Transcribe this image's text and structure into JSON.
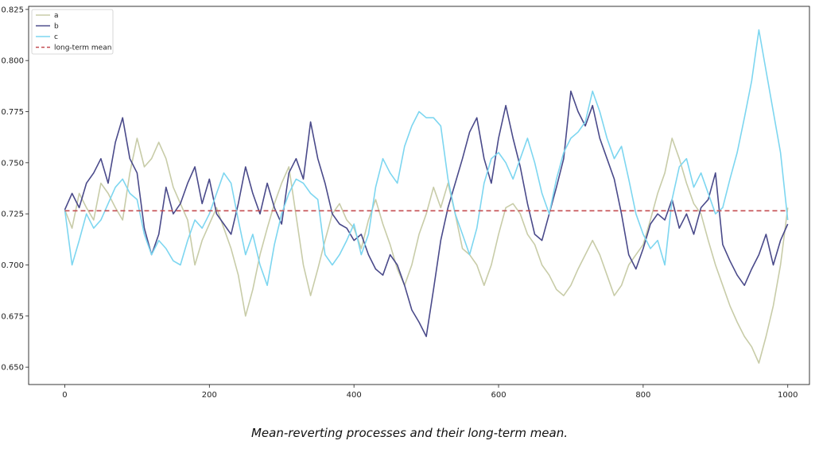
{
  "caption": "Mean-reverting processes and their long-term mean.",
  "chart_data": {
    "type": "line",
    "xlim": [
      -50,
      1030
    ],
    "ylim": [
      0.6415,
      0.8265
    ],
    "x_ticks": [
      0,
      200,
      400,
      600,
      800,
      1000
    ],
    "y_ticks": [
      0.65,
      0.675,
      0.7,
      0.725,
      0.75,
      0.775,
      0.8,
      0.825
    ],
    "grid": false,
    "legend_position": "top-left",
    "long_term_mean": 0.7265,
    "series": [
      {
        "name": "a",
        "color": "#c8cca8",
        "x": [
          0,
          10,
          20,
          30,
          40,
          50,
          60,
          70,
          80,
          90,
          100,
          110,
          120,
          130,
          140,
          150,
          160,
          170,
          180,
          190,
          200,
          210,
          220,
          230,
          240,
          250,
          260,
          270,
          280,
          290,
          300,
          310,
          320,
          330,
          340,
          350,
          360,
          370,
          380,
          390,
          400,
          410,
          420,
          430,
          440,
          450,
          460,
          470,
          480,
          490,
          500,
          510,
          520,
          530,
          540,
          550,
          560,
          570,
          580,
          590,
          600,
          610,
          620,
          630,
          640,
          650,
          660,
          670,
          680,
          690,
          700,
          710,
          720,
          730,
          740,
          750,
          760,
          770,
          780,
          790,
          800,
          810,
          820,
          830,
          840,
          850,
          860,
          870,
          880,
          890,
          900,
          910,
          920,
          930,
          940,
          950,
          960,
          970,
          980,
          990,
          1000
        ],
        "values": [
          0.727,
          0.718,
          0.735,
          0.728,
          0.722,
          0.74,
          0.735,
          0.728,
          0.722,
          0.745,
          0.762,
          0.748,
          0.752,
          0.76,
          0.752,
          0.738,
          0.73,
          0.722,
          0.7,
          0.712,
          0.72,
          0.728,
          0.718,
          0.708,
          0.695,
          0.675,
          0.688,
          0.705,
          0.718,
          0.73,
          0.74,
          0.748,
          0.724,
          0.7,
          0.685,
          0.698,
          0.712,
          0.725,
          0.73,
          0.722,
          0.718,
          0.708,
          0.722,
          0.732,
          0.72,
          0.71,
          0.698,
          0.69,
          0.7,
          0.715,
          0.725,
          0.738,
          0.728,
          0.74,
          0.725,
          0.708,
          0.705,
          0.7,
          0.69,
          0.7,
          0.715,
          0.728,
          0.73,
          0.725,
          0.715,
          0.71,
          0.7,
          0.695,
          0.688,
          0.685,
          0.69,
          0.698,
          0.705,
          0.712,
          0.705,
          0.695,
          0.685,
          0.69,
          0.7,
          0.705,
          0.71,
          0.722,
          0.735,
          0.745,
          0.762,
          0.752,
          0.74,
          0.73,
          0.725,
          0.712,
          0.7,
          0.69,
          0.68,
          0.672,
          0.665,
          0.66,
          0.652,
          0.665,
          0.68,
          0.7,
          0.728
        ]
      },
      {
        "name": "b",
        "color": "#4a4a8a",
        "x": [
          0,
          10,
          20,
          30,
          40,
          50,
          60,
          70,
          80,
          90,
          100,
          110,
          120,
          130,
          140,
          150,
          160,
          170,
          180,
          190,
          200,
          210,
          220,
          230,
          240,
          250,
          260,
          270,
          280,
          290,
          300,
          310,
          320,
          330,
          340,
          350,
          360,
          370,
          380,
          390,
          400,
          410,
          420,
          430,
          440,
          450,
          460,
          470,
          480,
          490,
          500,
          510,
          520,
          530,
          540,
          550,
          560,
          570,
          580,
          590,
          600,
          610,
          620,
          630,
          640,
          650,
          660,
          670,
          680,
          690,
          700,
          710,
          720,
          730,
          740,
          750,
          760,
          770,
          780,
          790,
          800,
          810,
          820,
          830,
          840,
          850,
          860,
          870,
          880,
          890,
          900,
          910,
          920,
          930,
          940,
          950,
          960,
          970,
          980,
          990,
          1000
        ],
        "values": [
          0.727,
          0.735,
          0.728,
          0.74,
          0.745,
          0.752,
          0.74,
          0.76,
          0.772,
          0.752,
          0.745,
          0.718,
          0.705,
          0.715,
          0.738,
          0.725,
          0.73,
          0.74,
          0.748,
          0.73,
          0.742,
          0.725,
          0.72,
          0.715,
          0.73,
          0.748,
          0.735,
          0.725,
          0.74,
          0.728,
          0.72,
          0.745,
          0.752,
          0.742,
          0.77,
          0.752,
          0.74,
          0.725,
          0.72,
          0.718,
          0.712,
          0.715,
          0.705,
          0.698,
          0.695,
          0.705,
          0.7,
          0.69,
          0.678,
          0.672,
          0.665,
          0.688,
          0.712,
          0.728,
          0.74,
          0.752,
          0.765,
          0.772,
          0.752,
          0.74,
          0.762,
          0.778,
          0.762,
          0.748,
          0.73,
          0.715,
          0.712,
          0.725,
          0.738,
          0.752,
          0.785,
          0.775,
          0.768,
          0.778,
          0.762,
          0.752,
          0.742,
          0.725,
          0.705,
          0.698,
          0.708,
          0.72,
          0.725,
          0.722,
          0.732,
          0.718,
          0.725,
          0.715,
          0.728,
          0.732,
          0.745,
          0.71,
          0.702,
          0.695,
          0.69,
          0.698,
          0.705,
          0.715,
          0.7,
          0.712,
          0.72
        ]
      },
      {
        "name": "c",
        "color": "#7dd6f0",
        "x": [
          0,
          10,
          20,
          30,
          40,
          50,
          60,
          70,
          80,
          90,
          100,
          110,
          120,
          130,
          140,
          150,
          160,
          170,
          180,
          190,
          200,
          210,
          220,
          230,
          240,
          250,
          260,
          270,
          280,
          290,
          300,
          310,
          320,
          330,
          340,
          350,
          360,
          370,
          380,
          390,
          400,
          410,
          420,
          430,
          440,
          450,
          460,
          470,
          480,
          490,
          500,
          510,
          520,
          530,
          540,
          550,
          560,
          570,
          580,
          590,
          600,
          610,
          620,
          630,
          640,
          650,
          660,
          670,
          680,
          690,
          700,
          710,
          720,
          730,
          740,
          750,
          760,
          770,
          780,
          790,
          800,
          810,
          820,
          830,
          840,
          850,
          860,
          870,
          880,
          890,
          900,
          910,
          920,
          930,
          940,
          950,
          960,
          970,
          980,
          990,
          1000
        ],
        "values": [
          0.727,
          0.7,
          0.712,
          0.725,
          0.718,
          0.722,
          0.73,
          0.738,
          0.742,
          0.735,
          0.732,
          0.715,
          0.705,
          0.712,
          0.708,
          0.702,
          0.7,
          0.712,
          0.722,
          0.718,
          0.725,
          0.735,
          0.745,
          0.74,
          0.722,
          0.705,
          0.715,
          0.7,
          0.69,
          0.71,
          0.725,
          0.735,
          0.742,
          0.74,
          0.735,
          0.732,
          0.705,
          0.7,
          0.705,
          0.712,
          0.72,
          0.705,
          0.715,
          0.738,
          0.752,
          0.745,
          0.74,
          0.758,
          0.768,
          0.775,
          0.772,
          0.772,
          0.768,
          0.742,
          0.725,
          0.715,
          0.705,
          0.718,
          0.74,
          0.752,
          0.755,
          0.75,
          0.742,
          0.752,
          0.762,
          0.75,
          0.735,
          0.725,
          0.742,
          0.755,
          0.762,
          0.765,
          0.77,
          0.785,
          0.775,
          0.762,
          0.752,
          0.758,
          0.742,
          0.725,
          0.715,
          0.708,
          0.712,
          0.7,
          0.732,
          0.748,
          0.752,
          0.738,
          0.745,
          0.735,
          0.725,
          0.728,
          0.742,
          0.755,
          0.772,
          0.79,
          0.815,
          0.795,
          0.775,
          0.755,
          0.722
        ]
      }
    ],
    "legend": [
      "a",
      "b",
      "c",
      "long-term mean"
    ],
    "mean_color": "#c44e52"
  }
}
